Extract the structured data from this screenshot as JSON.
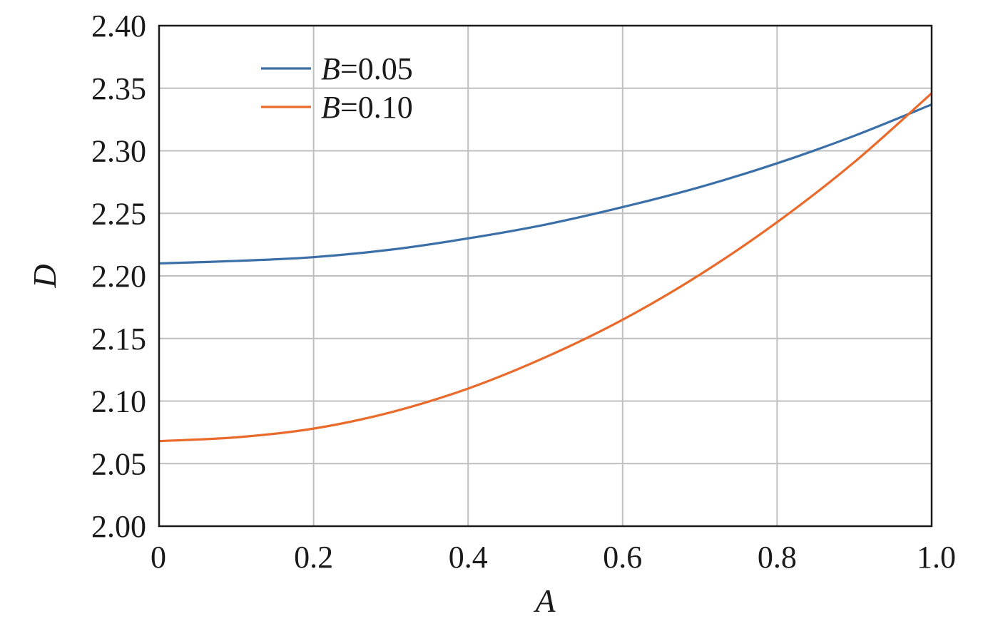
{
  "chart_data": {
    "type": "line",
    "xlabel": "A",
    "ylabel": "D",
    "xlim": [
      0,
      1.0
    ],
    "ylim": [
      2.0,
      2.4
    ],
    "xticks": [
      0,
      0.2,
      0.4,
      0.6,
      0.8,
      1.0
    ],
    "xtick_labels": [
      "0",
      "0.2",
      "0.4",
      "0.6",
      "0.8",
      "1.0"
    ],
    "yticks": [
      2.0,
      2.05,
      2.1,
      2.15,
      2.2,
      2.25,
      2.3,
      2.35,
      2.4
    ],
    "ytick_labels": [
      "2.00",
      "2.05",
      "2.10",
      "2.15",
      "2.20",
      "2.25",
      "2.30",
      "2.35",
      "2.40"
    ],
    "grid": true,
    "legend_position": "top-left",
    "series": [
      {
        "name": "B=0.05",
        "name_var": "B",
        "name_rest": "=0.05",
        "color": "#3b6fa8",
        "x": [
          0,
          0.1,
          0.2,
          0.3,
          0.4,
          0.5,
          0.6,
          0.7,
          0.8,
          0.9,
          1.0
        ],
        "y": [
          2.21,
          2.212,
          2.215,
          2.221,
          2.23,
          2.241,
          2.255,
          2.271,
          2.29,
          2.312,
          2.337
        ]
      },
      {
        "name": "B=0.10",
        "name_var": "B",
        "name_rest": "=0.10",
        "color": "#e96a2b",
        "x": [
          0,
          0.1,
          0.2,
          0.3,
          0.4,
          0.5,
          0.6,
          0.7,
          0.8,
          0.9,
          1.0
        ],
        "y": [
          2.068,
          2.071,
          2.078,
          2.091,
          2.11,
          2.135,
          2.165,
          2.201,
          2.243,
          2.291,
          2.346
        ]
      }
    ]
  }
}
